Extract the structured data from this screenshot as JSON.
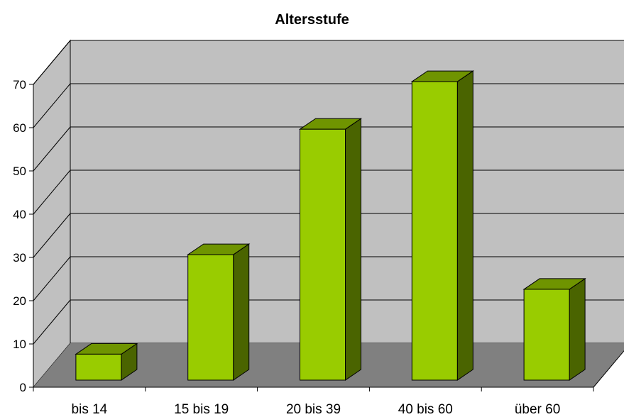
{
  "chart_data": {
    "type": "bar",
    "title": "Altersstufe",
    "categories": [
      "bis 14",
      "15 bis 19",
      "20 bis 39",
      "40 bis 60",
      "über 60"
    ],
    "values": [
      6,
      29,
      58,
      69,
      21
    ],
    "ylim": [
      0,
      70
    ],
    "yticks": [
      "0",
      "10",
      "20",
      "30",
      "40",
      "50",
      "60",
      "70"
    ],
    "grid": true,
    "legend": "none",
    "style": "3d-column",
    "colors": {
      "bar_front": "#99cc00",
      "bar_top": "#6f9400",
      "bar_side": "#4a6400",
      "back_wall": "#c0c0c0",
      "side_wall": "#c0c0c0",
      "floor": "#808080"
    }
  }
}
